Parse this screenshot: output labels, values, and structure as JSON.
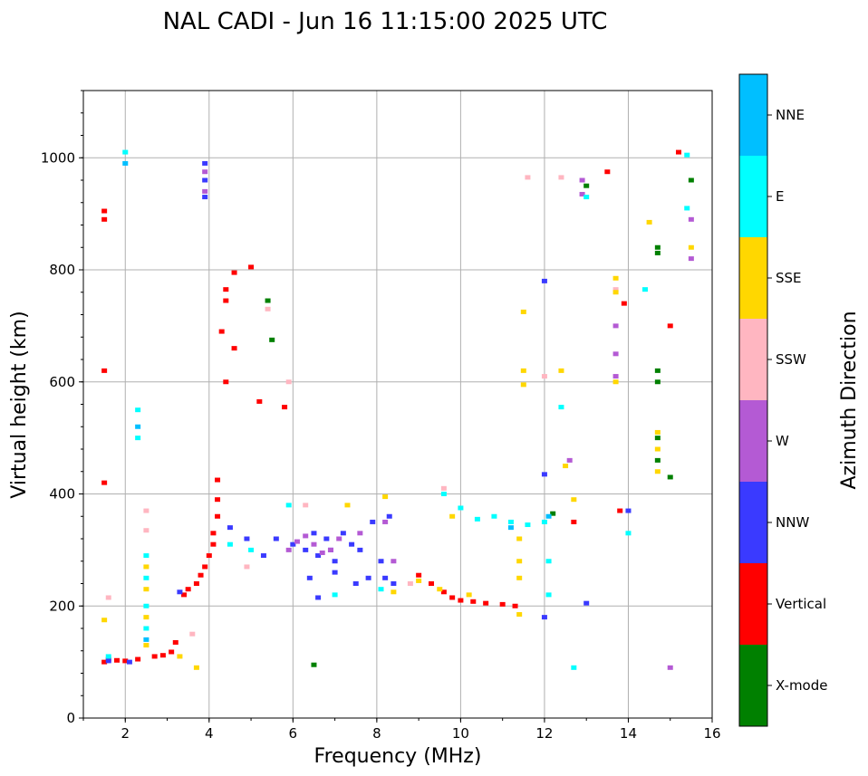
{
  "chart_data": {
    "type": "scatter",
    "title": "NAL CADI - Jun 16 11:15:00 2025 UTC",
    "xlabel": "Frequency (MHz)",
    "ylabel": "Virtual height (km)",
    "xlim": [
      1,
      16
    ],
    "ylim": [
      0,
      1120
    ],
    "x_ticks": [
      2,
      4,
      6,
      8,
      10,
      12,
      14,
      16
    ],
    "x_tick_labels": [
      "2",
      "4",
      "6",
      "8",
      "10",
      "12",
      "14",
      "16"
    ],
    "y_ticks": [
      0,
      200,
      400,
      600,
      800,
      1000
    ],
    "y_tick_labels": [
      "0",
      "200",
      "400",
      "600",
      "800",
      "1000"
    ],
    "grid": true,
    "colorbar": {
      "label": "Azimuth Direction",
      "categories": [
        {
          "name": "X-mode",
          "color": "#008000"
        },
        {
          "name": "Vertical",
          "color": "#ff0000"
        },
        {
          "name": "NNW",
          "color": "#3a3aff"
        },
        {
          "name": "W",
          "color": "#b45ad4"
        },
        {
          "name": "SSW",
          "color": "#ffb6c1"
        },
        {
          "name": "SSE",
          "color": "#ffd700"
        },
        {
          "name": "E",
          "color": "#00ffff"
        },
        {
          "name": "NNE",
          "color": "#00bfff"
        }
      ]
    },
    "series": [
      {
        "name": "Vertical",
        "color": "#ff0000",
        "points": [
          [
            1.5,
            100
          ],
          [
            1.6,
            105
          ],
          [
            1.8,
            103
          ],
          [
            2.0,
            102
          ],
          [
            2.3,
            105
          ],
          [
            2.7,
            110
          ],
          [
            2.9,
            112
          ],
          [
            3.1,
            118
          ],
          [
            3.2,
            135
          ],
          [
            3.4,
            220
          ],
          [
            3.5,
            230
          ],
          [
            3.7,
            240
          ],
          [
            3.8,
            255
          ],
          [
            3.9,
            270
          ],
          [
            4.0,
            290
          ],
          [
            4.1,
            310
          ],
          [
            4.1,
            330
          ],
          [
            4.2,
            360
          ],
          [
            4.2,
            390
          ],
          [
            4.2,
            425
          ],
          [
            1.5,
            620
          ],
          [
            1.5,
            890
          ],
          [
            1.5,
            905
          ],
          [
            1.5,
            420
          ],
          [
            4.3,
            690
          ],
          [
            4.4,
            600
          ],
          [
            4.4,
            745
          ],
          [
            4.4,
            765
          ],
          [
            4.6,
            660
          ],
          [
            4.6,
            795
          ],
          [
            5.0,
            805
          ],
          [
            5.2,
            565
          ],
          [
            5.8,
            555
          ],
          [
            9.0,
            255
          ],
          [
            9.3,
            240
          ],
          [
            9.6,
            225
          ],
          [
            9.8,
            215
          ],
          [
            10.0,
            210
          ],
          [
            10.3,
            208
          ],
          [
            10.6,
            205
          ],
          [
            11.0,
            203
          ],
          [
            11.3,
            200
          ],
          [
            12.7,
            350
          ],
          [
            13.8,
            370
          ],
          [
            13.5,
            975
          ],
          [
            13.9,
            740
          ],
          [
            15.0,
            700
          ],
          [
            15.2,
            1010
          ]
        ]
      },
      {
        "name": "NNW",
        "color": "#3a3aff",
        "points": [
          [
            1.6,
            102
          ],
          [
            2.1,
            100
          ],
          [
            3.3,
            225
          ],
          [
            3.9,
            930
          ],
          [
            3.9,
            960
          ],
          [
            3.9,
            990
          ],
          [
            4.5,
            340
          ],
          [
            4.9,
            320
          ],
          [
            5.3,
            290
          ],
          [
            5.6,
            320
          ],
          [
            6.0,
            310
          ],
          [
            6.3,
            300
          ],
          [
            6.5,
            330
          ],
          [
            6.6,
            290
          ],
          [
            6.8,
            320
          ],
          [
            6.9,
            300
          ],
          [
            7.0,
            280
          ],
          [
            7.2,
            330
          ],
          [
            7.4,
            310
          ],
          [
            7.6,
            300
          ],
          [
            7.8,
            250
          ],
          [
            6.4,
            250
          ],
          [
            6.6,
            215
          ],
          [
            7.0,
            260
          ],
          [
            7.5,
            240
          ],
          [
            8.1,
            280
          ],
          [
            8.2,
            250
          ],
          [
            8.4,
            240
          ],
          [
            8.3,
            360
          ],
          [
            7.9,
            350
          ],
          [
            12.0,
            435
          ],
          [
            12.0,
            780
          ],
          [
            12.0,
            180
          ],
          [
            13.0,
            205
          ],
          [
            14.0,
            370
          ]
        ]
      },
      {
        "name": "W",
        "color": "#b45ad4",
        "points": [
          [
            3.9,
            940
          ],
          [
            3.9,
            975
          ],
          [
            6.3,
            325
          ],
          [
            6.5,
            310
          ],
          [
            6.7,
            295
          ],
          [
            6.9,
            300
          ],
          [
            7.1,
            320
          ],
          [
            6.1,
            315
          ],
          [
            5.9,
            300
          ],
          [
            7.6,
            330
          ],
          [
            8.2,
            350
          ],
          [
            8.4,
            280
          ],
          [
            12.6,
            460
          ],
          [
            12.9,
            960
          ],
          [
            12.9,
            935
          ],
          [
            13.7,
            650
          ],
          [
            13.7,
            700
          ],
          [
            13.7,
            610
          ],
          [
            15.5,
            820
          ],
          [
            15.5,
            890
          ],
          [
            15.0,
            90
          ]
        ]
      },
      {
        "name": "SSW",
        "color": "#ffb6c1",
        "points": [
          [
            1.6,
            215
          ],
          [
            2.5,
            370
          ],
          [
            2.5,
            335
          ],
          [
            3.6,
            150
          ],
          [
            4.9,
            270
          ],
          [
            5.4,
            730
          ],
          [
            5.9,
            600
          ],
          [
            6.3,
            380
          ],
          [
            8.8,
            240
          ],
          [
            9.6,
            410
          ],
          [
            11.6,
            965
          ],
          [
            12.4,
            965
          ],
          [
            13.7,
            765
          ],
          [
            12.0,
            610
          ]
        ]
      },
      {
        "name": "SSE",
        "color": "#ffd700",
        "points": [
          [
            1.5,
            175
          ],
          [
            2.5,
            130
          ],
          [
            2.5,
            180
          ],
          [
            2.5,
            230
          ],
          [
            2.5,
            270
          ],
          [
            3.3,
            110
          ],
          [
            3.7,
            90
          ],
          [
            7.3,
            380
          ],
          [
            8.2,
            395
          ],
          [
            8.4,
            225
          ],
          [
            9.0,
            245
          ],
          [
            9.5,
            230
          ],
          [
            9.8,
            360
          ],
          [
            10.2,
            220
          ],
          [
            11.4,
            250
          ],
          [
            11.4,
            280
          ],
          [
            11.4,
            320
          ],
          [
            11.4,
            185
          ],
          [
            11.5,
            620
          ],
          [
            11.5,
            595
          ],
          [
            11.5,
            725
          ],
          [
            12.4,
            620
          ],
          [
            12.5,
            450
          ],
          [
            12.7,
            390
          ],
          [
            13.7,
            600
          ],
          [
            13.7,
            760
          ],
          [
            13.7,
            785
          ],
          [
            14.5,
            885
          ],
          [
            14.7,
            440
          ],
          [
            14.7,
            480
          ],
          [
            14.7,
            510
          ],
          [
            15.5,
            840
          ]
        ]
      },
      {
        "name": "E",
        "color": "#00ffff",
        "points": [
          [
            1.6,
            110
          ],
          [
            2.0,
            1010
          ],
          [
            2.3,
            550
          ],
          [
            2.3,
            500
          ],
          [
            2.5,
            160
          ],
          [
            2.5,
            200
          ],
          [
            2.5,
            250
          ],
          [
            2.5,
            290
          ],
          [
            4.5,
            310
          ],
          [
            5.0,
            300
          ],
          [
            5.9,
            380
          ],
          [
            7.0,
            220
          ],
          [
            8.1,
            230
          ],
          [
            9.6,
            400
          ],
          [
            10.0,
            375
          ],
          [
            10.4,
            355
          ],
          [
            10.8,
            360
          ],
          [
            11.2,
            350
          ],
          [
            11.6,
            345
          ],
          [
            12.0,
            350
          ],
          [
            12.1,
            280
          ],
          [
            12.1,
            220
          ],
          [
            12.4,
            555
          ],
          [
            12.7,
            90
          ],
          [
            13.0,
            930
          ],
          [
            14.0,
            330
          ],
          [
            14.4,
            765
          ],
          [
            15.4,
            910
          ],
          [
            15.4,
            1005
          ]
        ]
      },
      {
        "name": "X-mode",
        "color": "#008000",
        "points": [
          [
            5.4,
            745
          ],
          [
            5.5,
            675
          ],
          [
            6.5,
            95
          ],
          [
            12.2,
            365
          ],
          [
            13.0,
            950
          ],
          [
            14.7,
            830
          ],
          [
            14.7,
            840
          ],
          [
            14.7,
            460
          ],
          [
            14.7,
            500
          ],
          [
            14.7,
            600
          ],
          [
            14.7,
            620
          ],
          [
            15.0,
            430
          ],
          [
            15.5,
            960
          ]
        ]
      },
      {
        "name": "NNE",
        "color": "#00bfff",
        "points": [
          [
            2.0,
            990
          ],
          [
            2.3,
            520
          ],
          [
            2.5,
            140
          ],
          [
            11.2,
            340
          ],
          [
            12.1,
            360
          ]
        ]
      }
    ]
  }
}
